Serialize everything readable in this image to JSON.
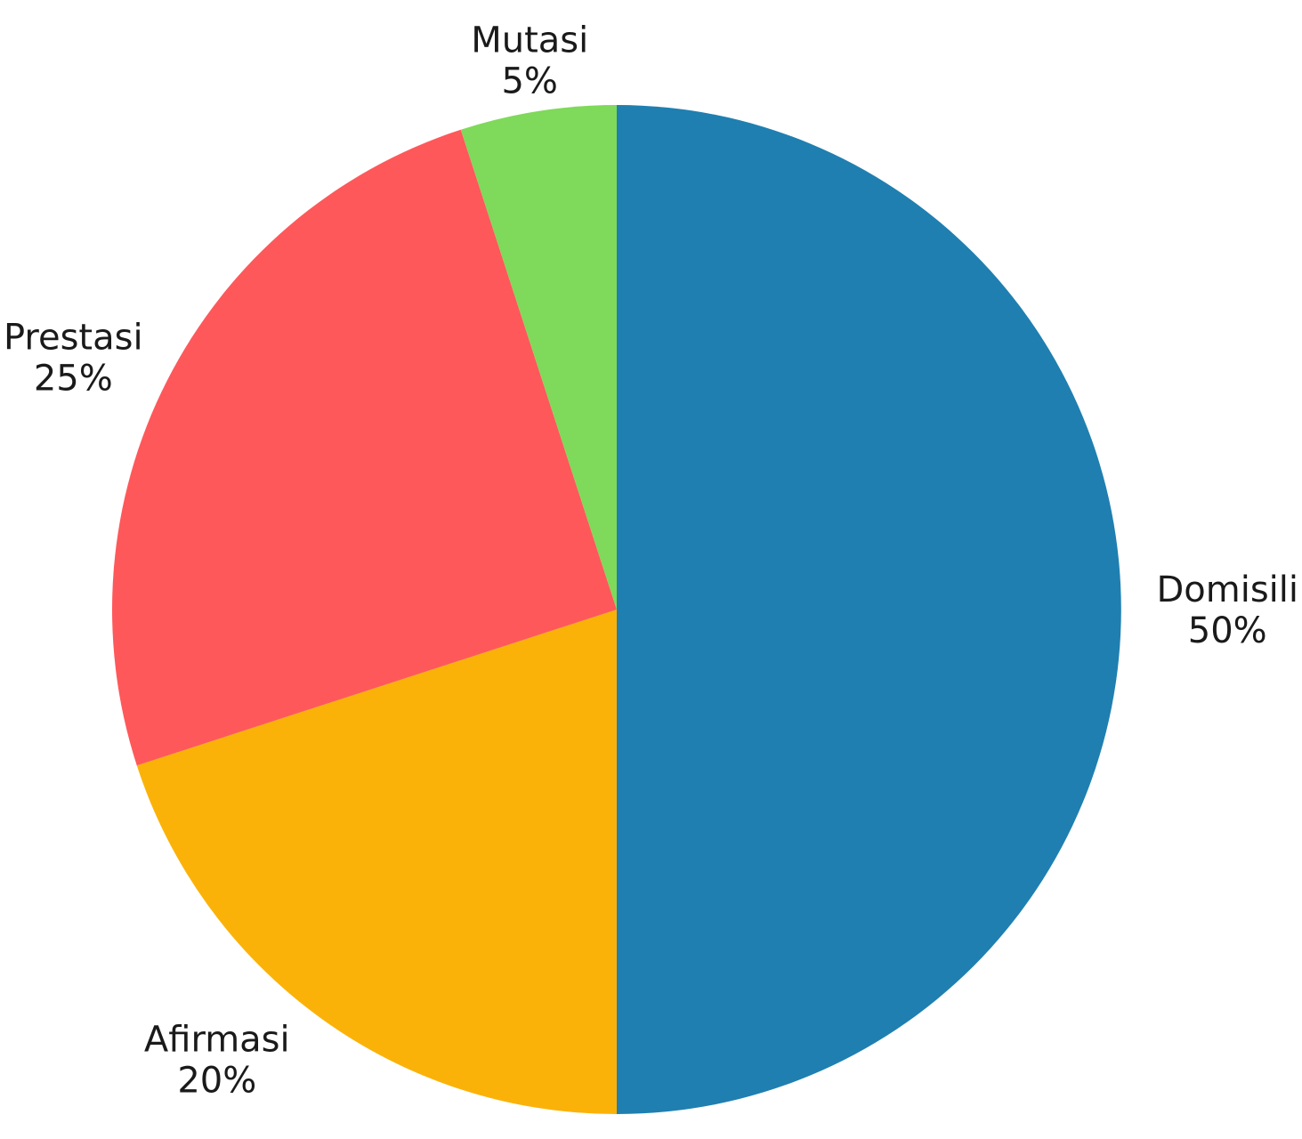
{
  "chart_data": {
    "type": "pie",
    "categories": [
      "Domisili",
      "Afirmasi",
      "Prestasi",
      "Mutasi"
    ],
    "values": [
      50,
      20,
      25,
      5
    ],
    "value_labels": [
      "50%",
      "20%",
      "25%",
      "5%"
    ],
    "colors": [
      "#1f7fb0",
      "#fbb208",
      "#ff585a",
      "#7fd95a"
    ],
    "start_angle_deg": 0,
    "direction": "clockwise",
    "title": "",
    "legend": false
  }
}
